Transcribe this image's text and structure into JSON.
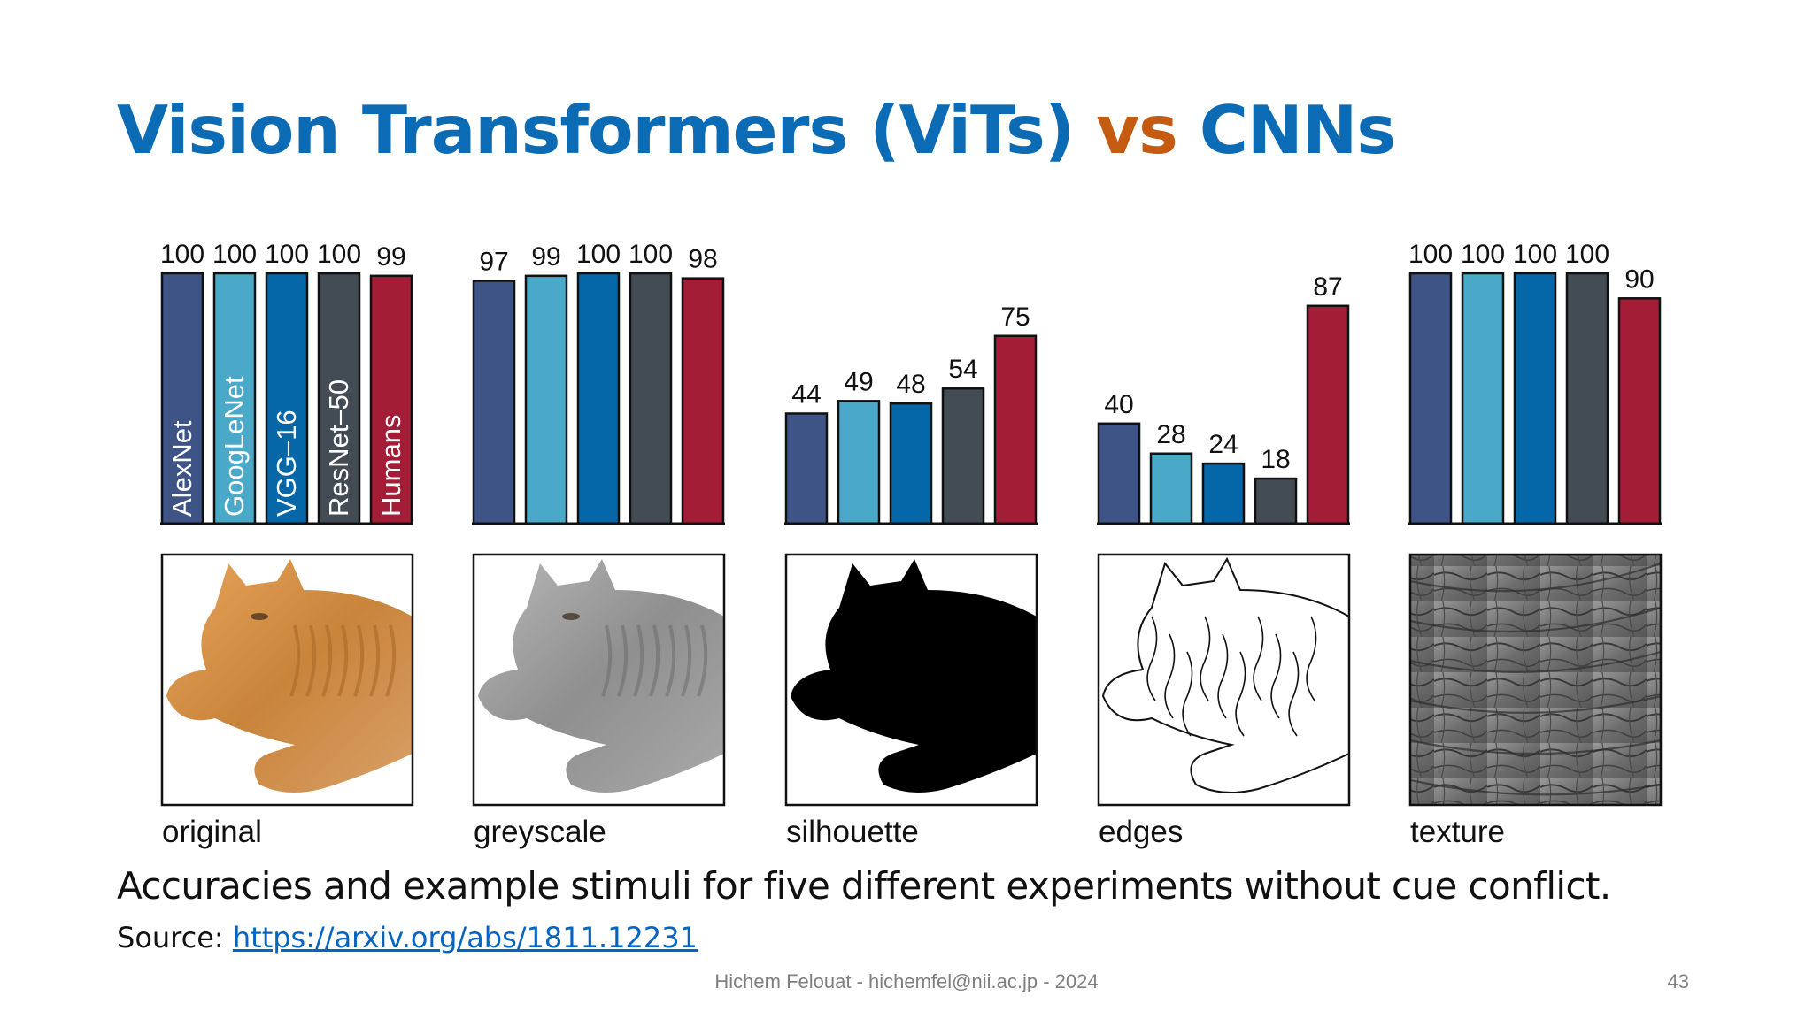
{
  "slide": {
    "title_part1": "Vision Transformers (ViTs) ",
    "title_vs": "vs",
    "title_part2": " CNNs",
    "caption": "Accuracies and example stimuli for five different experiments without cue conflict.",
    "source_label": "Source: ",
    "source_link": "https://arxiv.org/abs/1811.12231",
    "footer": "Hichem Felouat - hichemfel@nii.ac.jp - 2024",
    "page_number": "43"
  },
  "colors": {
    "title": "#0b6bb5",
    "vs": "#c55a11",
    "link": "#0563c1"
  },
  "chart_data": {
    "type": "bar",
    "series_names": [
      "AlexNet",
      "GoogLeNet",
      "VGG–16",
      "ResNet–50",
      "Humans"
    ],
    "series_colors": [
      "#3e5487",
      "#4aa8c8",
      "#0567a8",
      "#434b55",
      "#a41d36"
    ],
    "ylim": [
      0,
      100
    ],
    "panels": [
      {
        "label": "original",
        "values": [
          100,
          100,
          100,
          100,
          99
        ],
        "stimulus": "cat photo, color"
      },
      {
        "label": "greyscale",
        "values": [
          97,
          99,
          100,
          100,
          98
        ],
        "stimulus": "cat photo, greyscale"
      },
      {
        "label": "silhouette",
        "values": [
          44,
          49,
          48,
          54,
          75
        ],
        "stimulus": "cat silhouette"
      },
      {
        "label": "edges",
        "values": [
          40,
          28,
          24,
          18,
          87
        ],
        "stimulus": "cat edge drawing"
      },
      {
        "label": "texture",
        "values": [
          100,
          100,
          100,
          100,
          90
        ],
        "stimulus": "elephant skin texture"
      }
    ]
  }
}
